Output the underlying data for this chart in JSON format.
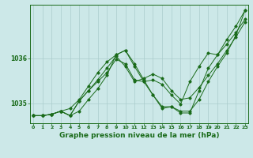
{
  "bg_color": "#cce8e8",
  "line_color": "#1a6b1a",
  "grid_color": "#aacccc",
  "xlabel": "Graphe pression niveau de la mer (hPa)",
  "xlabel_fontsize": 6.5,
  "yticks": [
    1035,
    1036
  ],
  "xticks": [
    0,
    1,
    2,
    3,
    4,
    5,
    6,
    7,
    8,
    9,
    10,
    11,
    12,
    13,
    14,
    15,
    16,
    17,
    18,
    19,
    20,
    21,
    22,
    23
  ],
  "xlim": [
    -0.3,
    23.3
  ],
  "ylim": [
    1034.55,
    1037.2
  ],
  "series": [
    [
      1034.72,
      1034.72,
      1034.75,
      1034.82,
      1034.72,
      1034.82,
      1035.08,
      1035.32,
      1035.62,
      1036.08,
      1036.18,
      1035.88,
      1035.52,
      1035.18,
      1034.92,
      1034.92,
      1034.78,
      1034.78,
      1035.28,
      1035.78,
      1036.08,
      1036.42,
      1036.72,
      1037.08
    ],
    [
      1034.72,
      1034.72,
      1034.75,
      1034.82,
      1034.72,
      1035.05,
      1035.28,
      1035.52,
      1035.78,
      1036.05,
      1035.82,
      1035.48,
      1035.55,
      1035.65,
      1035.55,
      1035.28,
      1035.08,
      1035.12,
      1035.35,
      1035.62,
      1035.88,
      1036.18,
      1036.48,
      1036.82
    ],
    [
      1034.72,
      1034.72,
      1034.75,
      1034.82,
      1034.72,
      1035.05,
      1035.28,
      1035.48,
      1035.68,
      1035.98,
      1035.88,
      1035.52,
      1035.48,
      1035.52,
      1035.42,
      1035.18,
      1034.98,
      1035.48,
      1035.82,
      1036.12,
      1036.08,
      1036.32,
      1036.58,
      1036.88
    ],
    [
      1034.72,
      1034.72,
      1034.75,
      1034.82,
      1034.88,
      1035.08,
      1035.38,
      1035.68,
      1035.92,
      1036.08,
      1036.18,
      1035.82,
      1035.48,
      1035.18,
      1034.88,
      1034.92,
      1034.82,
      1034.82,
      1035.08,
      1035.48,
      1035.82,
      1036.12,
      1036.52,
      1037.08
    ]
  ]
}
